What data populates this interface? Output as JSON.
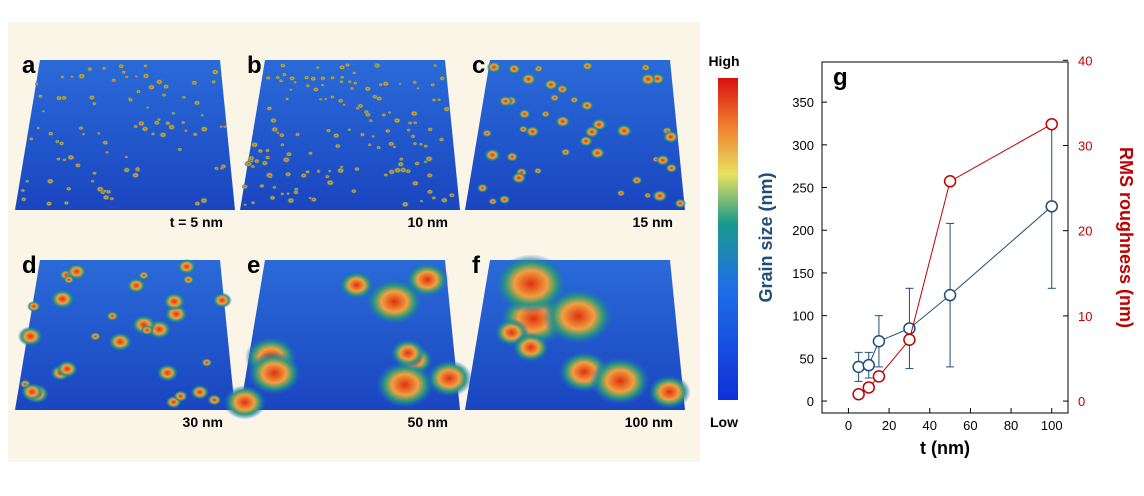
{
  "panels": [
    {
      "label": "a",
      "caption": "t = 5 nm"
    },
    {
      "label": "b",
      "caption": "10 nm"
    },
    {
      "label": "c",
      "caption": "15 nm"
    },
    {
      "label": "d",
      "caption": "30 nm"
    },
    {
      "label": "e",
      "caption": "50 nm"
    },
    {
      "label": "f",
      "caption": "100 nm"
    }
  ],
  "colorbar": {
    "high": "High",
    "low": "Low"
  },
  "chart_data": {
    "type": "line",
    "label": "g",
    "xlabel": "t (nm)",
    "ylabel": "Grain size (nm)",
    "y2label": "RMS roughness (nm)",
    "x": [
      5,
      10,
      15,
      30,
      50,
      100
    ],
    "xlim": [
      -13,
      108
    ],
    "xticks": [
      0,
      20,
      40,
      60,
      80,
      100
    ],
    "ylim": [
      -14,
      397
    ],
    "yticks": [
      0,
      50,
      100,
      150,
      200,
      250,
      300,
      350
    ],
    "y2lim": [
      -1.4,
      39.8
    ],
    "y2ticks": [
      0,
      10,
      20,
      30,
      40
    ],
    "series": [
      {
        "color": "#1f4e79",
        "values": [
          40,
          42,
          70,
          85,
          124,
          228
        ],
        "errors": [
          17,
          15,
          30,
          47,
          84,
          96
        ]
      },
      {
        "color": "#c00000",
        "axis": "y2",
        "values": [
          0.8,
          1.6,
          2.9,
          7.2,
          25.8,
          32.5
        ]
      }
    ]
  }
}
